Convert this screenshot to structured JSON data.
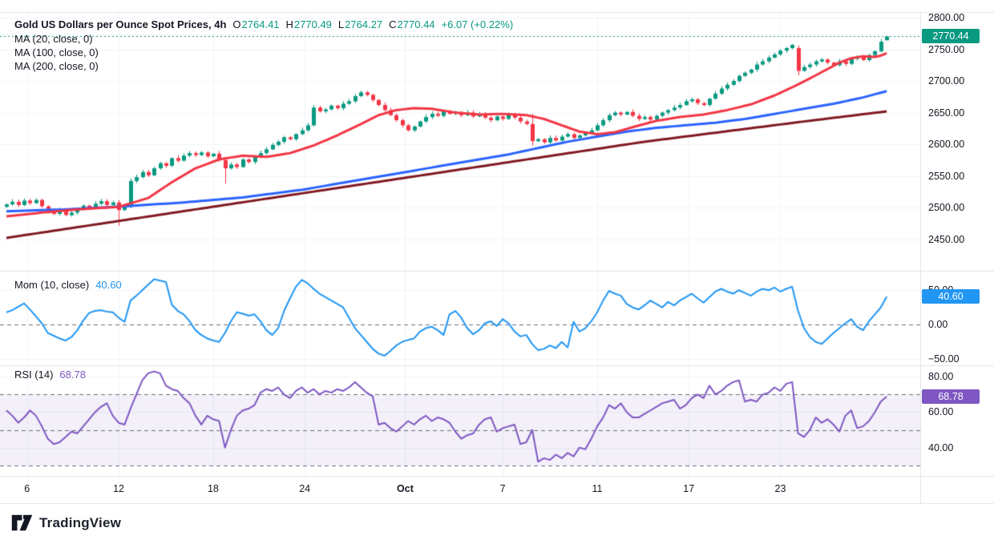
{
  "legend": {
    "title": "Gold US Dollars per Ounce Spot Prices, 4h",
    "open_label": "O",
    "open": "2764.41",
    "high_label": "H",
    "high": "2770.49",
    "low_label": "L",
    "low": "2764.27",
    "close_label": "C",
    "close": "2770.44",
    "change": "+6.07 (+0.22%)",
    "ma_rows": [
      "MA (20, close, 0)",
      "MA (100, close, 0)",
      "MA (200, close, 0)"
    ]
  },
  "mom_legend": {
    "label": "Mom (10, close)",
    "value": "40.60"
  },
  "rsi_legend": {
    "label": "RSI (14)",
    "value": "68.78"
  },
  "axes": {
    "price_labels": [
      {
        "text": "2800.00",
        "value": 2800
      },
      {
        "text": "2750.00",
        "value": 2750
      },
      {
        "text": "2700.00",
        "value": 2700
      },
      {
        "text": "2650.00",
        "value": 2650
      },
      {
        "text": "2600.00",
        "value": 2600
      },
      {
        "text": "2550.00",
        "value": 2550
      },
      {
        "text": "2500.00",
        "value": 2500
      },
      {
        "text": "2450.00",
        "value": 2450
      }
    ],
    "mom_labels": [
      {
        "text": "50.00",
        "value": 50
      },
      {
        "text": "0.00",
        "value": 0
      },
      {
        "text": "−50.00",
        "value": -50
      }
    ],
    "rsi_labels": [
      {
        "text": "80.00",
        "value": 80
      },
      {
        "text": "60.00",
        "value": 60
      },
      {
        "text": "40.00",
        "value": 40
      }
    ],
    "badges": {
      "price": {
        "text": "2770.44",
        "value": 2770.44,
        "color": "#089981"
      },
      "mom": {
        "text": "40.60",
        "value": 40.6,
        "color": "#2196f3"
      },
      "rsi": {
        "text": "68.78",
        "value": 68.78,
        "color": "#7e57c2"
      }
    }
  },
  "time_axis": {
    "ticks": [
      {
        "label": "6",
        "i": 3.5
      },
      {
        "label": "12",
        "i": 19
      },
      {
        "label": "18",
        "i": 35
      },
      {
        "label": "24",
        "i": 50.5
      },
      {
        "label": "Oct",
        "i": 67.5,
        "bold": true
      },
      {
        "label": "7",
        "i": 84
      },
      {
        "label": "11",
        "i": 100
      },
      {
        "label": "17",
        "i": 115.5
      },
      {
        "label": "23",
        "i": 131
      }
    ]
  },
  "footer": {
    "brand": "TradingView"
  },
  "colors": {
    "up_candle": "#089981",
    "down_candle": "#f23645",
    "ma20": "#f23645",
    "ma100": "#2962ff",
    "ma200": "#801922",
    "mom_line": "#2196f3",
    "rsi_line": "#7e57c2",
    "rsi_band": "rgba(126,87,194,0.09)",
    "grid": "#f0f3fa",
    "separator": "#e0e3eb",
    "dashed_level": "#6a6d78",
    "last_price_line": "#089981",
    "text": "#131722"
  },
  "chart_data": [
    {
      "type": "candlestick",
      "panel": "price",
      "title": "Gold US Dollars per Ounce Spot Prices, 4h",
      "interval": "4h",
      "last": {
        "open": 2764.41,
        "high": 2770.49,
        "low": 2764.27,
        "close": 2770.44,
        "change_abs": 6.07,
        "change_pct": 0.22
      },
      "y_gridlines": [
        2800,
        2750,
        2700,
        2650,
        2600,
        2550,
        2500,
        2450
      ],
      "y_range": [
        2400,
        2809
      ],
      "last_price_line": 2770.44,
      "closes": [
        2505,
        2509,
        2504,
        2511,
        2507,
        2512,
        2502,
        2494,
        2490,
        2496,
        2488,
        2492,
        2497,
        2503,
        2499,
        2506,
        2510,
        2504,
        2508,
        2496,
        2501,
        2542,
        2548,
        2556,
        2551,
        2562,
        2570,
        2566,
        2578,
        2574,
        2582,
        2586,
        2583,
        2587,
        2581,
        2585,
        2575,
        2562,
        2568,
        2564,
        2576,
        2572,
        2580,
        2586,
        2592,
        2599,
        2604,
        2611,
        2608,
        2616,
        2622,
        2630,
        2658,
        2652,
        2655,
        2661,
        2657,
        2664,
        2668,
        2676,
        2682,
        2678,
        2670,
        2662,
        2654,
        2646,
        2638,
        2630,
        2622,
        2628,
        2636,
        2643,
        2648,
        2645,
        2652,
        2648,
        2651,
        2646,
        2650,
        2644,
        2648,
        2642,
        2638,
        2644,
        2640,
        2646,
        2642,
        2636,
        2632,
        2605,
        2608,
        2603,
        2610,
        2606,
        2612,
        2616,
        2610,
        2614,
        2618,
        2622,
        2630,
        2638,
        2646,
        2650,
        2647,
        2651,
        2645,
        2640,
        2643,
        2639,
        2645,
        2650,
        2654,
        2658,
        2662,
        2668,
        2671,
        2665,
        2662,
        2672,
        2680,
        2688,
        2694,
        2700,
        2708,
        2713,
        2718,
        2726,
        2731,
        2737,
        2742,
        2748,
        2752,
        2757,
        2716,
        2722,
        2726,
        2731,
        2734,
        2729,
        2725,
        2731,
        2727,
        2735,
        2738,
        2733,
        2741,
        2747,
        2762,
        2770.44
      ],
      "candle_overrides": {
        "19": [
          2508,
          2512,
          2471,
          2496
        ],
        "21": [
          2501,
          2546,
          2499,
          2542
        ],
        "37": [
          2575,
          2578,
          2538,
          2562
        ],
        "52": [
          2630,
          2662,
          2628,
          2658
        ],
        "89": [
          2632,
          2648,
          2598,
          2605
        ],
        "134": [
          2752,
          2756,
          2709,
          2716
        ],
        "149": [
          2764.41,
          2770.49,
          2764.27,
          2770.44
        ]
      },
      "overlays": [
        {
          "name": "MA (20, close, 0)",
          "color": "#f23645",
          "keypoints": [
            [
              0,
              2486
            ],
            [
              6,
              2492
            ],
            [
              12,
              2497
            ],
            [
              19,
              2501
            ],
            [
              24,
              2515
            ],
            [
              28,
              2540
            ],
            [
              32,
              2562
            ],
            [
              36,
              2576
            ],
            [
              40,
              2582
            ],
            [
              44,
              2580
            ],
            [
              48,
              2586
            ],
            [
              52,
              2598
            ],
            [
              56,
              2614
            ],
            [
              60,
              2632
            ],
            [
              63,
              2646
            ],
            [
              66,
              2654
            ],
            [
              69,
              2657
            ],
            [
              72,
              2656
            ],
            [
              76,
              2650
            ],
            [
              80,
              2647
            ],
            [
              84,
              2648
            ],
            [
              88,
              2646
            ],
            [
              91,
              2640
            ],
            [
              94,
              2630
            ],
            [
              97,
              2620
            ],
            [
              100,
              2616
            ],
            [
              103,
              2619
            ],
            [
              106,
              2627
            ],
            [
              110,
              2637
            ],
            [
              114,
              2643
            ],
            [
              118,
              2647
            ],
            [
              122,
              2654
            ],
            [
              126,
              2663
            ],
            [
              130,
              2677
            ],
            [
              133,
              2690
            ],
            [
              136,
              2704
            ],
            [
              139,
              2719
            ],
            [
              141,
              2729
            ],
            [
              143,
              2736
            ],
            [
              145,
              2739
            ],
            [
              147,
              2738
            ],
            [
              148,
              2740
            ],
            [
              149,
              2744
            ]
          ]
        },
        {
          "name": "MA (100, close, 0)",
          "color": "#2962ff",
          "keypoints": [
            [
              0,
              2494
            ],
            [
              10,
              2497
            ],
            [
              20,
              2502
            ],
            [
              30,
              2508
            ],
            [
              40,
              2516
            ],
            [
              50,
              2528
            ],
            [
              60,
              2544
            ],
            [
              70,
              2560
            ],
            [
              80,
              2576
            ],
            [
              85,
              2584
            ],
            [
              90,
              2594
            ],
            [
              95,
              2604
            ],
            [
              100,
              2612
            ],
            [
              105,
              2620
            ],
            [
              110,
              2626
            ],
            [
              115,
              2630
            ],
            [
              120,
              2634
            ],
            [
              125,
              2640
            ],
            [
              130,
              2648
            ],
            [
              135,
              2656
            ],
            [
              140,
              2664
            ],
            [
              145,
              2674
            ],
            [
              149,
              2684
            ]
          ]
        },
        {
          "name": "MA (200, close, 0)",
          "color": "#801922",
          "keypoints": [
            [
              0,
              2452
            ],
            [
              27,
              2490
            ],
            [
              54,
              2528
            ],
            [
              81,
              2566
            ],
            [
              108,
              2604
            ],
            [
              135,
              2636
            ],
            [
              149,
              2652
            ]
          ]
        }
      ]
    },
    {
      "type": "line",
      "panel": "momentum",
      "name": "Mom (10, close)",
      "color": "#2196f3",
      "last": 40.6,
      "y_gridlines": [
        50,
        -50
      ],
      "dashed_levels": [
        0
      ],
      "y_range": [
        -59,
        77
      ],
      "values": [
        18,
        21,
        26,
        31,
        22,
        12,
        2,
        -12,
        -16,
        -20,
        -23,
        -18,
        -8,
        6,
        17,
        20,
        21,
        19,
        18,
        10,
        4,
        35,
        42,
        50,
        58,
        66,
        64,
        62,
        29,
        20,
        15,
        5,
        -8,
        -15,
        -20,
        -23,
        -25,
        -12,
        5,
        18,
        16,
        13,
        15,
        5,
        -8,
        -15,
        -5,
        20,
        38,
        55,
        65,
        60,
        52,
        45,
        40,
        35,
        30,
        25,
        10,
        -5,
        -15,
        -25,
        -35,
        -42,
        -45,
        -38,
        -30,
        -25,
        -22,
        -20,
        -10,
        -5,
        -3,
        -8,
        -15,
        15,
        20,
        10,
        -5,
        -14,
        -8,
        2,
        5,
        -2,
        8,
        2,
        -10,
        -17,
        -15,
        -28,
        -37,
        -35,
        -30,
        -34,
        -25,
        -33,
        4,
        -10,
        -5,
        5,
        18,
        35,
        49,
        45,
        42,
        30,
        25,
        22,
        28,
        35,
        30,
        25,
        33,
        28,
        35,
        40,
        45,
        38,
        32,
        40,
        48,
        52,
        48,
        45,
        50,
        46,
        42,
        48,
        52,
        50,
        54,
        48,
        52,
        55,
        20,
        -5,
        -18,
        -25,
        -28,
        -20,
        -12,
        -5,
        2,
        8,
        -3,
        -8,
        5,
        15,
        25,
        40.6
      ]
    },
    {
      "type": "line",
      "panel": "rsi",
      "name": "RSI (14)",
      "color": "#7e57c2",
      "last": 68.78,
      "y_gridlines": [
        80,
        60,
        40
      ],
      "dashed_levels": [
        70,
        50,
        30
      ],
      "band": [
        30,
        70
      ],
      "y_range": [
        24,
        86
      ],
      "values": [
        61,
        58,
        54,
        57,
        61,
        58,
        52,
        45,
        42,
        43,
        46,
        49,
        48,
        52,
        56,
        60,
        63,
        65,
        58,
        54,
        53,
        62,
        70,
        78,
        82,
        83,
        82,
        75,
        73,
        72,
        68,
        65,
        58,
        53,
        58,
        56,
        55,
        40,
        50,
        58,
        61,
        62,
        64,
        71,
        73,
        72,
        74,
        70,
        68,
        72,
        74,
        71,
        73,
        70,
        72,
        71,
        73,
        72,
        74,
        77,
        74,
        71,
        69,
        53,
        54,
        51,
        49,
        52,
        55,
        53,
        56,
        58,
        55,
        57,
        56,
        54,
        49,
        45,
        47,
        48,
        53,
        56,
        57,
        49,
        51,
        52,
        53,
        42,
        43,
        50,
        32,
        34,
        33,
        36,
        34,
        37,
        35,
        40,
        39,
        45,
        52,
        57,
        64,
        62,
        65,
        60,
        57,
        57,
        59,
        61,
        63,
        65,
        66,
        67,
        62,
        64,
        68,
        70,
        68,
        75,
        70,
        72,
        75,
        77,
        78,
        66,
        67,
        66,
        70,
        71,
        74,
        72,
        76,
        77,
        48,
        46,
        50,
        57,
        54,
        56,
        53,
        49,
        58,
        61,
        51,
        52,
        55,
        60,
        66,
        68.78
      ]
    }
  ]
}
